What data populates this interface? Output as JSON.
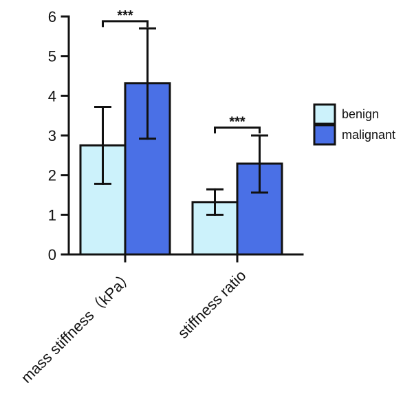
{
  "chart_data": {
    "type": "bar",
    "categories": [
      "mass stiffness（kPa）",
      "stiffness ratio"
    ],
    "series": [
      {
        "name": "benign",
        "color": "#ccf2fb",
        "values": [
          2.75,
          1.32
        ],
        "error_low": [
          1.78,
          1.0
        ],
        "error_high": [
          3.72,
          1.64
        ]
      },
      {
        "name": "malignant",
        "color": "#4a70e6",
        "values": [
          4.32,
          2.29
        ],
        "error_low": [
          2.92,
          1.56
        ],
        "error_high": [
          5.7,
          3.0
        ]
      }
    ],
    "ylim": [
      0,
      6
    ],
    "yticks": [
      0,
      1,
      2,
      3,
      4,
      5,
      6
    ],
    "ytick_labels": [
      "0",
      "1",
      "2",
      "3",
      "4",
      "5",
      "6"
    ],
    "legend": {
      "position": "right",
      "items": [
        "benign",
        "malignant"
      ]
    },
    "annotations": [
      {
        "text": "***",
        "category_index": 0,
        "y": 5.88
      },
      {
        "text": "***",
        "category_index": 1,
        "y": 3.2
      }
    ],
    "grid": false,
    "xlabel": "",
    "ylabel": "",
    "title": ""
  }
}
